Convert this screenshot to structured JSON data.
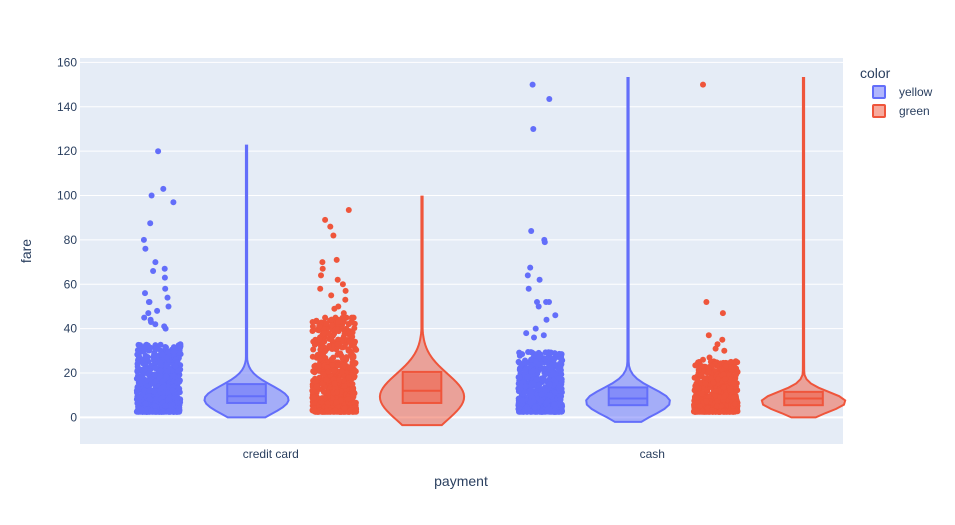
{
  "chart_data": {
    "type": "violin",
    "xlabel": "payment",
    "ylabel": "fare",
    "categories": [
      "credit card",
      "cash"
    ],
    "ylim": [
      -12,
      162
    ],
    "yticks": [
      0,
      20,
      40,
      60,
      80,
      100,
      120,
      140,
      160
    ],
    "grid": true,
    "legend": {
      "title": "color",
      "placement": "top-right"
    },
    "series": [
      {
        "name": "yellow",
        "color": "#636efa",
        "groups": [
          {
            "category": "credit card",
            "min": 2.5,
            "q1": 6.5,
            "median": 9.5,
            "q3": 15,
            "max": 122.5,
            "violin_extent": [
              0,
              122.5
            ],
            "outliers": [
              120,
              103,
              100,
              97,
              87.5,
              80,
              76,
              70,
              67,
              66,
              63,
              58,
              56,
              54,
              52,
              52,
              50,
              48,
              47,
              45,
              44,
              43,
              42,
              41,
              40
            ]
          },
          {
            "category": "cash",
            "min": 2.5,
            "q1": 5.5,
            "median": 8.5,
            "q3": 13.5,
            "max": 153,
            "violin_extent": [
              -2,
              153
            ],
            "outliers": [
              150,
              143.5,
              130,
              84,
              80,
              79,
              67.5,
              64,
              62,
              58,
              52,
              52,
              52,
              50,
              46,
              44,
              40,
              38,
              37,
              36
            ]
          }
        ]
      },
      {
        "name": "green",
        "color": "#ef553b",
        "groups": [
          {
            "category": "credit card",
            "min": 2.5,
            "q1": 6.5,
            "median": 12,
            "q3": 20.5,
            "max": 99.5,
            "violin_extent": [
              -3.5,
              99.5
            ],
            "outliers": [
              93.5,
              89,
              86,
              82,
              71,
              70,
              67,
              64,
              62,
              60,
              58,
              57,
              55,
              53,
              50,
              49,
              47,
              45,
              43,
              41,
              40,
              38,
              35,
              33
            ]
          },
          {
            "category": "cash",
            "min": 2.5,
            "q1": 5.5,
            "median": 8.5,
            "q3": 11.5,
            "max": 153,
            "violin_extent": [
              0,
              153
            ],
            "outliers": [
              150,
              52,
              47,
              37,
              35,
              33,
              31,
              30,
              27,
              26,
              25
            ]
          }
        ]
      }
    ]
  }
}
